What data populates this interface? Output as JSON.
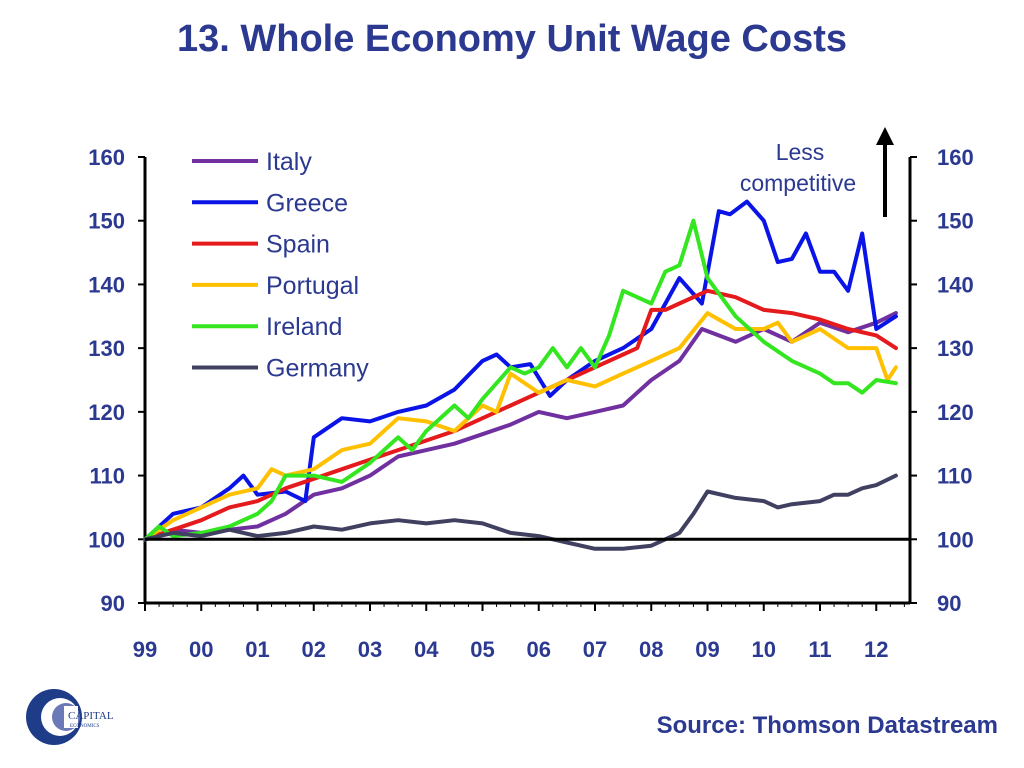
{
  "title": "13. Whole Economy Unit Wage Costs",
  "source": "Source: Thomson Datastream",
  "logo": {
    "text": "CAPITAL",
    "subtext": "ECONOMICS"
  },
  "annotation": {
    "line1": "Less",
    "line2": "competitive"
  },
  "chart_data": {
    "type": "line",
    "title": "13. Whole Economy Unit Wage Costs",
    "xlabel": "",
    "ylabel": "",
    "ylim": [
      90,
      160
    ],
    "xlim": [
      1999,
      2012.6
    ],
    "yticks": [
      90,
      100,
      110,
      120,
      130,
      140,
      150,
      160
    ],
    "ytick_labels": [
      "90",
      "100",
      "110",
      "120",
      "130",
      "140",
      "150",
      "160"
    ],
    "xticks": [
      1999,
      2000,
      2001,
      2002,
      2003,
      2004,
      2005,
      2006,
      2007,
      2008,
      2009,
      2010,
      2011,
      2012
    ],
    "xtick_labels": [
      "99",
      "00",
      "01",
      "02",
      "03",
      "04",
      "05",
      "06",
      "07",
      "08",
      "09",
      "10",
      "11",
      "12"
    ],
    "reference_line": 100,
    "legend_position": "top-left",
    "grid": false,
    "series": [
      {
        "name": "Italy",
        "color": "#7030a0",
        "points": [
          [
            1999.0,
            100
          ],
          [
            1999.5,
            101.5
          ],
          [
            2000.0,
            101
          ],
          [
            2000.5,
            101.5
          ],
          [
            2001.0,
            102
          ],
          [
            2001.5,
            104
          ],
          [
            2002.0,
            107
          ],
          [
            2002.5,
            108
          ],
          [
            2003.0,
            110
          ],
          [
            2003.5,
            113
          ],
          [
            2004.0,
            114
          ],
          [
            2004.5,
            115
          ],
          [
            2005.0,
            116.5
          ],
          [
            2005.5,
            118
          ],
          [
            2006.0,
            120
          ],
          [
            2006.5,
            119
          ],
          [
            2007.0,
            120
          ],
          [
            2007.5,
            121
          ],
          [
            2008.0,
            125
          ],
          [
            2008.5,
            128
          ],
          [
            2008.9,
            133
          ],
          [
            2009.5,
            131
          ],
          [
            2010.0,
            133
          ],
          [
            2010.5,
            131
          ],
          [
            2011.0,
            134
          ],
          [
            2011.5,
            132.5
          ],
          [
            2012.0,
            134
          ],
          [
            2012.35,
            135.5
          ]
        ]
      },
      {
        "name": "Greece",
        "color": "#0a14e6",
        "points": [
          [
            1999.0,
            100
          ],
          [
            1999.5,
            104
          ],
          [
            2000.0,
            105
          ],
          [
            2000.5,
            108
          ],
          [
            2000.75,
            110
          ],
          [
            2001.0,
            107
          ],
          [
            2001.5,
            107.5
          ],
          [
            2001.85,
            106
          ],
          [
            2002.0,
            116
          ],
          [
            2002.5,
            119
          ],
          [
            2003.0,
            118.5
          ],
          [
            2003.5,
            120
          ],
          [
            2004.0,
            121
          ],
          [
            2004.5,
            123.5
          ],
          [
            2005.0,
            128
          ],
          [
            2005.25,
            129
          ],
          [
            2005.5,
            127
          ],
          [
            2005.85,
            127.5
          ],
          [
            2006.2,
            122.5
          ],
          [
            2006.5,
            125
          ],
          [
            2007.0,
            128
          ],
          [
            2007.5,
            130
          ],
          [
            2008.0,
            133
          ],
          [
            2008.5,
            141
          ],
          [
            2008.9,
            137
          ],
          [
            2009.2,
            151.5
          ],
          [
            2009.4,
            151
          ],
          [
            2009.7,
            153
          ],
          [
            2010.0,
            150
          ],
          [
            2010.25,
            143.5
          ],
          [
            2010.5,
            144
          ],
          [
            2010.75,
            148
          ],
          [
            2011.0,
            142
          ],
          [
            2011.25,
            142
          ],
          [
            2011.5,
            139
          ],
          [
            2011.75,
            148
          ],
          [
            2012.0,
            133
          ],
          [
            2012.35,
            135
          ]
        ]
      },
      {
        "name": "Spain",
        "color": "#e41a1c",
        "points": [
          [
            1999.0,
            100
          ],
          [
            1999.5,
            101.5
          ],
          [
            2000.0,
            103
          ],
          [
            2000.5,
            105
          ],
          [
            2001.0,
            106
          ],
          [
            2001.5,
            108
          ],
          [
            2002.0,
            109.5
          ],
          [
            2002.5,
            111
          ],
          [
            2003.0,
            112.5
          ],
          [
            2003.5,
            114
          ],
          [
            2004.0,
            115.5
          ],
          [
            2004.5,
            117
          ],
          [
            2005.0,
            119
          ],
          [
            2005.5,
            121
          ],
          [
            2006.0,
            123
          ],
          [
            2006.5,
            125
          ],
          [
            2007.0,
            127
          ],
          [
            2007.5,
            129
          ],
          [
            2007.75,
            130
          ],
          [
            2008.0,
            136
          ],
          [
            2008.25,
            136
          ],
          [
            2008.5,
            137
          ],
          [
            2009.0,
            139
          ],
          [
            2009.5,
            138
          ],
          [
            2010.0,
            136
          ],
          [
            2010.5,
            135.5
          ],
          [
            2011.0,
            134.5
          ],
          [
            2011.5,
            133
          ],
          [
            2012.0,
            132
          ],
          [
            2012.35,
            130
          ]
        ]
      },
      {
        "name": "Portugal",
        "color": "#ffc000",
        "points": [
          [
            1999.0,
            100
          ],
          [
            1999.5,
            103
          ],
          [
            2000.0,
            105
          ],
          [
            2000.5,
            107
          ],
          [
            2001.0,
            108
          ],
          [
            2001.25,
            111
          ],
          [
            2001.5,
            110
          ],
          [
            2002.0,
            111
          ],
          [
            2002.5,
            114
          ],
          [
            2003.0,
            115
          ],
          [
            2003.5,
            119
          ],
          [
            2004.0,
            118.5
          ],
          [
            2004.5,
            117
          ],
          [
            2005.0,
            121
          ],
          [
            2005.25,
            120
          ],
          [
            2005.5,
            126
          ],
          [
            2006.0,
            123
          ],
          [
            2006.5,
            125
          ],
          [
            2007.0,
            124
          ],
          [
            2007.5,
            126
          ],
          [
            2008.0,
            128
          ],
          [
            2008.5,
            130
          ],
          [
            2009.0,
            135.5
          ],
          [
            2009.5,
            133
          ],
          [
            2010.0,
            133
          ],
          [
            2010.25,
            134
          ],
          [
            2010.5,
            131
          ],
          [
            2011.0,
            133
          ],
          [
            2011.5,
            130
          ],
          [
            2012.0,
            130
          ],
          [
            2012.2,
            125
          ],
          [
            2012.35,
            127
          ]
        ]
      },
      {
        "name": "Ireland",
        "color": "#33e620",
        "points": [
          [
            1999.0,
            100
          ],
          [
            1999.25,
            102
          ],
          [
            1999.5,
            100.5
          ],
          [
            2000.0,
            101
          ],
          [
            2000.5,
            102
          ],
          [
            2001.0,
            104
          ],
          [
            2001.25,
            106
          ],
          [
            2001.5,
            110
          ],
          [
            2002.0,
            110
          ],
          [
            2002.5,
            109
          ],
          [
            2003.0,
            112
          ],
          [
            2003.5,
            116
          ],
          [
            2003.75,
            114
          ],
          [
            2004.0,
            117
          ],
          [
            2004.5,
            121
          ],
          [
            2004.75,
            119
          ],
          [
            2005.0,
            122
          ],
          [
            2005.5,
            127
          ],
          [
            2005.75,
            126
          ],
          [
            2006.0,
            127
          ],
          [
            2006.25,
            130
          ],
          [
            2006.5,
            127
          ],
          [
            2006.75,
            130
          ],
          [
            2007.0,
            127
          ],
          [
            2007.25,
            132
          ],
          [
            2007.5,
            139
          ],
          [
            2008.0,
            137
          ],
          [
            2008.25,
            142
          ],
          [
            2008.5,
            143
          ],
          [
            2008.75,
            150
          ],
          [
            2009.0,
            141
          ],
          [
            2009.5,
            135
          ],
          [
            2010.0,
            131
          ],
          [
            2010.5,
            128
          ],
          [
            2011.0,
            126
          ],
          [
            2011.25,
            124.5
          ],
          [
            2011.5,
            124.5
          ],
          [
            2011.75,
            123
          ],
          [
            2012.0,
            125
          ],
          [
            2012.35,
            124.5
          ]
        ]
      },
      {
        "name": "Germany",
        "color": "#404060",
        "points": [
          [
            1999.0,
            100
          ],
          [
            1999.5,
            101
          ],
          [
            2000.0,
            100.5
          ],
          [
            2000.5,
            101.5
          ],
          [
            2001.0,
            100.5
          ],
          [
            2001.5,
            101
          ],
          [
            2002.0,
            102
          ],
          [
            2002.5,
            101.5
          ],
          [
            2003.0,
            102.5
          ],
          [
            2003.5,
            103
          ],
          [
            2004.0,
            102.5
          ],
          [
            2004.5,
            103
          ],
          [
            2005.0,
            102.5
          ],
          [
            2005.5,
            101
          ],
          [
            2006.0,
            100.5
          ],
          [
            2006.5,
            99.5
          ],
          [
            2007.0,
            98.5
          ],
          [
            2007.5,
            98.5
          ],
          [
            2008.0,
            99
          ],
          [
            2008.5,
            101
          ],
          [
            2008.75,
            104
          ],
          [
            2009.0,
            107.5
          ],
          [
            2009.5,
            106.5
          ],
          [
            2010.0,
            106
          ],
          [
            2010.25,
            105
          ],
          [
            2010.5,
            105.5
          ],
          [
            2011.0,
            106
          ],
          [
            2011.25,
            107
          ],
          [
            2011.5,
            107
          ],
          [
            2011.75,
            108
          ],
          [
            2012.0,
            108.5
          ],
          [
            2012.35,
            110
          ]
        ]
      }
    ]
  }
}
